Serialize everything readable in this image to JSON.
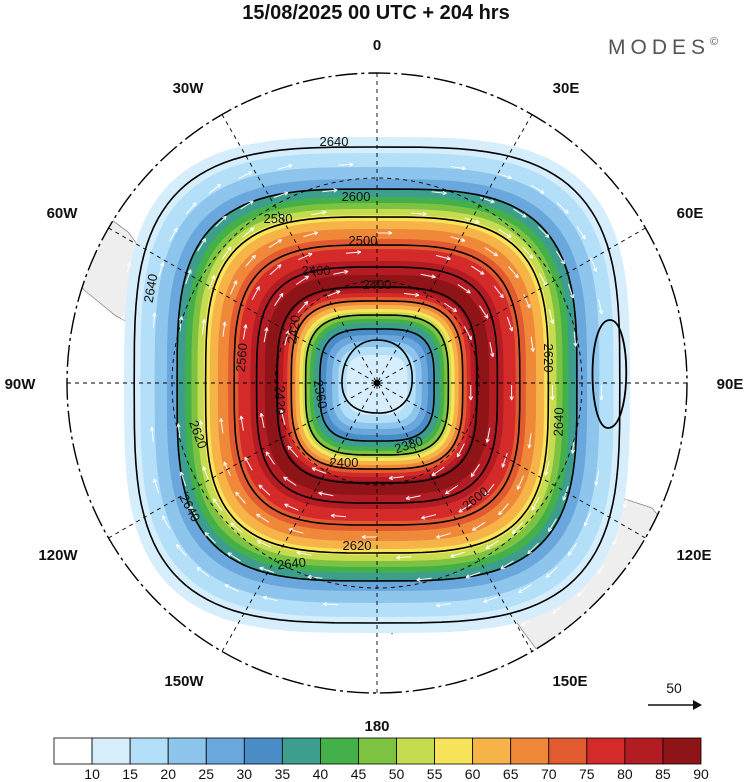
{
  "figure": {
    "title": "15/08/2025  00 UTC  + 204 hrs",
    "brand": "MODES",
    "brand_mark": "©",
    "reference_vector_label": "50"
  },
  "longitude_labels": {
    "n0": "0",
    "n30e": "30E",
    "n60e": "60E",
    "n90e": "90E",
    "n120e": "120E",
    "n150e": "150E",
    "n180": "180",
    "n150w": "150W",
    "n120w": "120W",
    "n90w": "90W",
    "n60w": "60W",
    "n30w": "30W"
  },
  "contours": {
    "c2640_top": "2640",
    "c2600_top": "2600",
    "c2580": "2580",
    "c2500": "2500",
    "c2460": "2460",
    "c2400_top": "2400",
    "c2420_a": "2420",
    "c2420_b": "2420",
    "c2360_a": "2360",
    "c2380": "2380",
    "c2400_bot": "2400",
    "c2640_left": "2640",
    "c2620_left": "2620",
    "c2640_sw": "2640",
    "c2620_bot": "2620",
    "c2640_bot": "2640",
    "c2620_right": "2620",
    "c2640_right": "2640",
    "c2600_bot": "2600",
    "c2560": "2560"
  },
  "colorbar": {
    "ticks": [
      "10",
      "15",
      "20",
      "25",
      "30",
      "35",
      "40",
      "45",
      "50",
      "55",
      "60",
      "65",
      "70",
      "75",
      "80",
      "85",
      "90"
    ],
    "colors": [
      "#ffffff",
      "#d6eefc",
      "#b4dff8",
      "#8ec5ec",
      "#6aa7dc",
      "#4a8cc6",
      "#3d9e8e",
      "#43b04a",
      "#7ec242",
      "#c6dc50",
      "#f8e45a",
      "#f6b347",
      "#f0883a",
      "#e25a30",
      "#d42a2a",
      "#b21c22",
      "#8e1418"
    ]
  },
  "palette": {
    "land": "#eeeeee",
    "coast": "#8a8a8a",
    "vector": "#ffffff",
    "contour": "#000000",
    "grid": "#000000"
  }
}
